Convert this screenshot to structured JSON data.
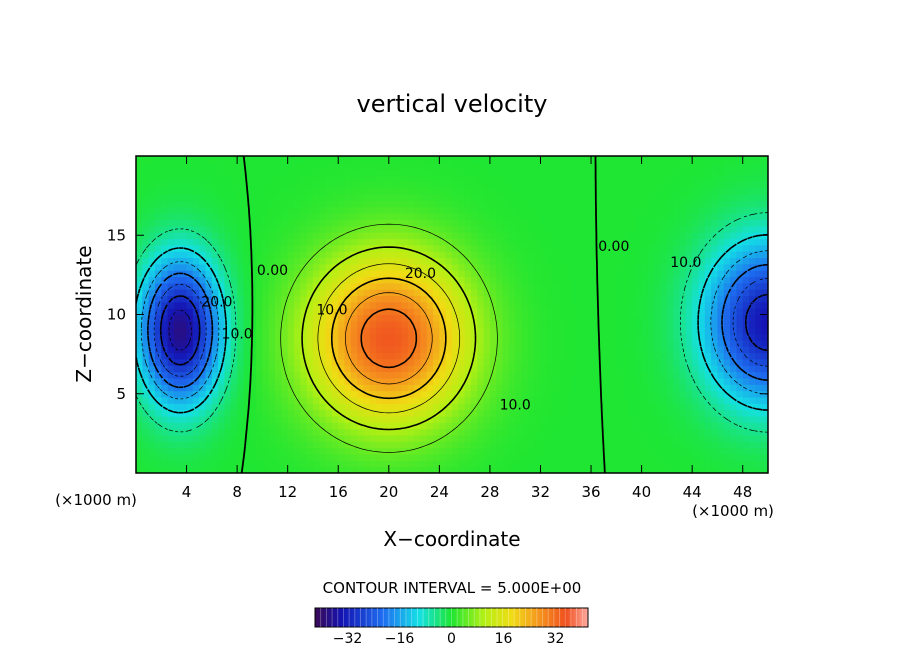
{
  "chart_data": {
    "type": "heatmap",
    "title": "vertical velocity",
    "xlabel": "X−coordinate",
    "ylabel": "Z−coordinate",
    "x_unit_label": "(×1000 m)",
    "z_unit_label": "(×1000 m)",
    "x_ticks": [
      "4",
      "8",
      "12",
      "16",
      "20",
      "24",
      "28",
      "32",
      "36",
      "40",
      "44",
      "48"
    ],
    "z_ticks": [
      "5",
      "10",
      "15"
    ],
    "xlim": [
      0,
      50
    ],
    "zlim": [
      0,
      20
    ],
    "grid": false,
    "contour_labels": [
      {
        "text": "20.0",
        "x": 22.5,
        "z": 12.3
      },
      {
        "text": "10.0",
        "x": 15.5,
        "z": 10.0
      },
      {
        "text": "10.0",
        "x": 30.0,
        "z": 4.0
      },
      {
        "text": "0.00",
        "x": 10.8,
        "z": 12.5
      },
      {
        "text": "0.00",
        "x": 37.8,
        "z": 14.0
      },
      {
        "text": "10.0",
        "x": 43.5,
        "z": 13.0
      },
      {
        "text": "20.0",
        "x": 6.4,
        "z": 10.5
      },
      {
        "text": "10.0",
        "x": 8.0,
        "z": 8.5
      }
    ],
    "contour_interval_text": "CONTOUR INTERVAL = 5.000E+00",
    "colorbar": {
      "ticks": [
        "−32",
        "−16",
        "0",
        "16",
        "32"
      ],
      "tick_values": [
        -32,
        -16,
        0,
        16,
        32
      ],
      "range": [
        -42,
        42
      ]
    },
    "field_features": [
      {
        "sign": "positive",
        "peak": 34,
        "x_center": 20,
        "z_center": 8.5
      },
      {
        "sign": "negative",
        "peak": -38,
        "x_center": 3.5,
        "z_center": 9
      },
      {
        "sign": "negative",
        "peak": -34,
        "x_center": 50,
        "z_center": 9.5
      }
    ]
  }
}
